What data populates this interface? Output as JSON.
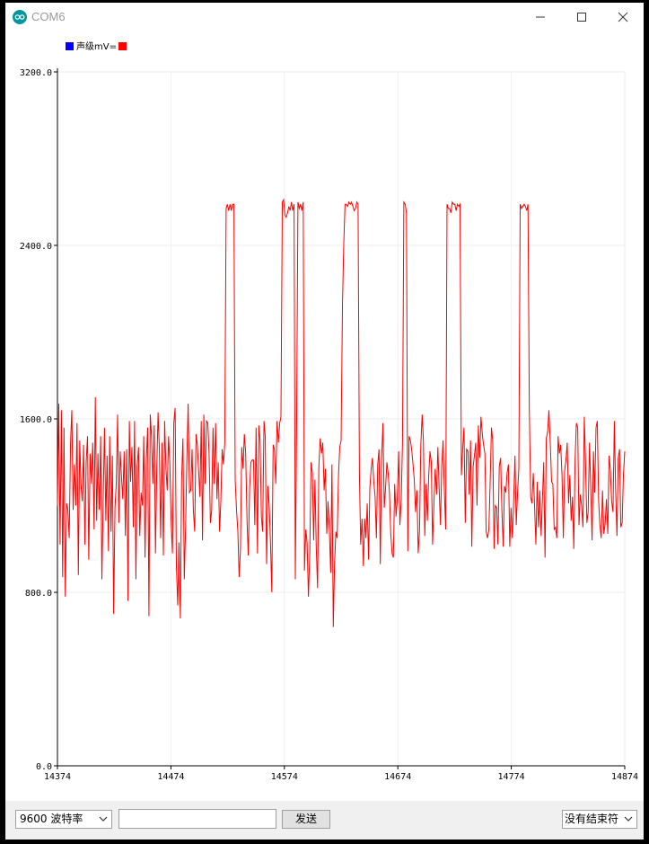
{
  "window": {
    "title": "COM6"
  },
  "legend": {
    "label": "声级mV=",
    "colors": [
      "#0000ff",
      "#ff0000"
    ]
  },
  "colors": {
    "series": "#ff0000",
    "grid": "#eeeeee",
    "axis": "#000000"
  },
  "chart_data": {
    "type": "line",
    "title": "",
    "xlabel": "",
    "ylabel": "",
    "xlim": [
      14374,
      14874
    ],
    "ylim": [
      0,
      3200
    ],
    "x_ticks": [
      "14374",
      "14474",
      "14574",
      "14674",
      "14774",
      "14874"
    ],
    "y_ticks": [
      "0.0",
      "800.0",
      "1600.0",
      "2400.0",
      "3200.0"
    ],
    "grid": true,
    "legend_position": "top-left",
    "series": [
      {
        "name": "声级mV=",
        "color": "#ff0000",
        "values": [
          1200,
          1670,
          1020,
          1640,
          870,
          1560,
          780,
          1210,
          1180,
          1050,
          1490,
          1640,
          1180,
          1390,
          1200,
          1580,
          880,
          1500,
          1300,
          1220,
          1480,
          1020,
          1400,
          1520,
          950,
          1440,
          1300,
          1490,
          1090,
          1700,
          1130,
          1440,
          1180,
          1520,
          860,
          1240,
          1560,
          1130,
          1430,
          990,
          1520,
          1080,
          1430,
          700,
          1190,
          1300,
          1620,
          1120,
          1450,
          1330,
          1230,
          1450,
          1060,
          1460,
          760,
          1590,
          1310,
          1470,
          1100,
          1590,
          860,
          1380,
          1470,
          1060,
          1260,
          1200,
          1520,
          960,
          1410,
          1560,
          690,
          1620,
          1520,
          1300,
          1570,
          980,
          1380,
          1630,
          1450,
          1050,
          1490,
          970,
          1590,
          1370,
          1270,
          1520,
          1390,
          1120,
          980,
          1580,
          1650,
          920,
          740,
          1030,
          680,
          1320,
          1510,
          860,
          1090,
          1420,
          1670,
          1260,
          1270,
          1460,
          1180,
          1080,
          1530,
          1480,
          1360,
          1240,
          1590,
          1040,
          1620,
          1300,
          1590,
          1580,
          1440,
          1120,
          1180,
          1560,
          1300,
          1580,
          1230,
          1400,
          1080,
          1220,
          1460,
          1390,
          1490,
          2570,
          2590,
          2560,
          2590,
          2560,
          2590,
          2590,
          1320,
          1180,
          1080,
          870,
          1000,
          1470,
          1370,
          1530,
          1440,
          1130,
          970,
          1280,
          1400,
          1410,
          1410,
          1110,
          1560,
          980,
          1570,
          1500,
          1150,
          1080,
          1590,
          1520,
          930,
          1290,
          1200,
          1020,
          800,
          1480,
          1460,
          1300,
          1590,
          1490,
          1580,
          1610,
          2600,
          2610,
          2540,
          2530,
          2550,
          2580,
          2560,
          2600,
          2560,
          2590,
          860,
          1610,
          2600,
          2570,
          2590,
          2560,
          2600,
          900,
          1090,
          1030,
          780,
          980,
          1400,
          1350,
          1040,
          1320,
          1010,
          820,
          1380,
          1510,
          1440,
          1490,
          1270,
          1370,
          1070,
          1220,
          1090,
          890,
          1390,
          640,
          930,
          1080,
          1050,
          1340,
          1470,
          1500,
          2120,
          2400,
          2590,
          2590,
          2580,
          2600,
          2590,
          2600,
          2580,
          2560,
          2570,
          2600,
          2590,
          1350,
          1020,
          1140,
          920,
          1140,
          1050,
          1210,
          950,
          1280,
          1370,
          1420,
          1310,
          1240,
          1050,
          1390,
          1460,
          930,
          1410,
          1580,
          1190,
          1280,
          1400,
          1350,
          1260,
          1070,
          980,
          960,
          1300,
          1150,
          1230,
          1450,
          1110,
          1230,
          1490,
          2600,
          2590,
          2550,
          990,
          1520,
          1500,
          1460,
          1390,
          1320,
          1170,
          1270,
          980,
          1090,
          1480,
          1620,
          1500,
          1060,
          1300,
          1130,
          1340,
          1450,
          1400,
          1020,
          1210,
          1370,
          1250,
          1470,
          1280,
          1110,
          1380,
          1500,
          1270,
          1090,
          2590,
          2570,
          2570,
          2550,
          2600,
          2590,
          2590,
          2560,
          2590,
          2580,
          2590,
          1340,
          1460,
          1560,
          1120,
          1460,
          1450,
          1250,
          1500,
          1010,
          1380,
          1430,
          1490,
          1200,
          1570,
          1420,
          1610,
          1530,
          1480,
          1440,
          1080,
          1050,
          1090,
          1300,
          1560,
          1500,
          1000,
          1200,
          1190,
          1020,
          1380,
          1420,
          1180,
          1010,
          1290,
          1260,
          1350,
          1390,
          1010,
          1190,
          1050,
          1220,
          1430,
          1110,
          1260,
          1370,
          2590,
          2570,
          2580,
          2590,
          2580,
          2560,
          2590,
          1640,
          1240,
          1210,
          1350,
          1200,
          1020,
          1310,
          1100,
          1270,
          1060,
          1230,
          1400,
          960,
          1510,
          1540,
          1640,
          1490,
          1310,
          1300,
          1090,
          1100,
          1050,
          1520,
          1440,
          1480,
          1340,
          1050,
          1360,
          1410,
          1490,
          1210,
          1340,
          1130,
          1240,
          1000,
          1420,
          1580,
          1560,
          1110,
          1250,
          1200,
          1100,
          1610,
          1400,
          1120,
          1170,
          1490,
          1280,
          1040,
          1450,
          1260,
          1560,
          1590,
          1220,
          1110,
          1050,
          1270,
          1070,
          1120,
          1230,
          1070,
          1430,
          1360,
          1220,
          1170,
          1590,
          1280,
          1060,
          1420,
          1460,
          1100,
          1120,
          1340,
          1450
        ]
      }
    ]
  },
  "toolbar": {
    "baud_rate": "9600 波特率",
    "send_label": "发送",
    "send_input_value": "",
    "line_ending": "没有结束符"
  }
}
